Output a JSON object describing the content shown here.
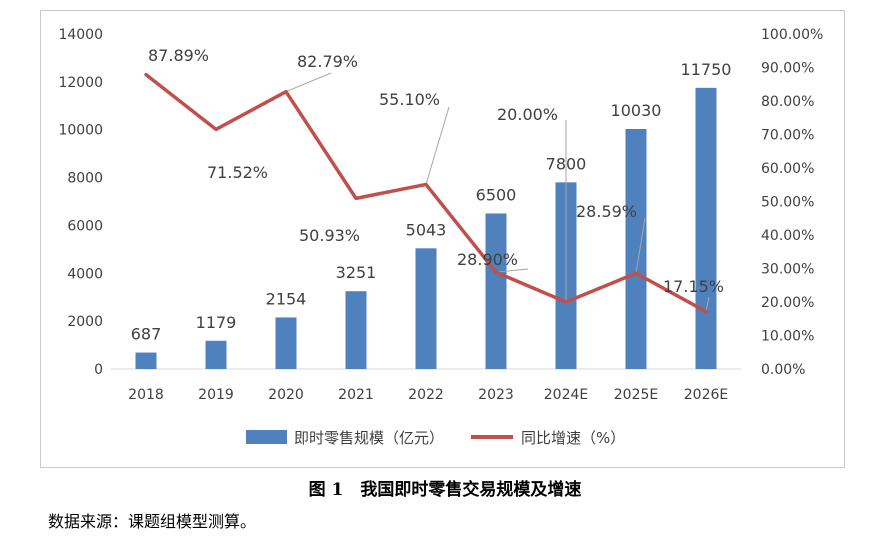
{
  "chart_data": {
    "type": "bar+line",
    "categories": [
      "2018",
      "2019",
      "2020",
      "2021",
      "2022",
      "2023",
      "2024E",
      "2025E",
      "2026E"
    ],
    "series": [
      {
        "name": "即时零售规模（亿元）",
        "type": "bar",
        "axis": "left",
        "color": "#4f81bd",
        "values": [
          687,
          1179,
          2154,
          3251,
          5043,
          6500,
          7800,
          10030,
          11750
        ],
        "labels": [
          "687",
          "1179",
          "2154",
          "3251",
          "5043",
          "6500",
          "7800",
          "10030",
          "11750"
        ]
      },
      {
        "name": "同比增速（%）",
        "type": "line",
        "axis": "right",
        "color": "#c0504d",
        "values": [
          87.89,
          71.52,
          82.79,
          50.93,
          55.1,
          28.9,
          20.0,
          28.59,
          17.15
        ],
        "labels": [
          "87.89%",
          "71.52%",
          "82.79%",
          "50.93%",
          "55.10%",
          "28.90%",
          "20.00%",
          "28.59%",
          "17.15%"
        ]
      }
    ],
    "y_left": {
      "min": 0,
      "max": 14000,
      "ticks": [
        0,
        2000,
        4000,
        6000,
        8000,
        10000,
        12000,
        14000
      ],
      "tick_labels": [
        "0",
        "2000",
        "4000",
        "6000",
        "8000",
        "10000",
        "12000",
        "14000"
      ]
    },
    "y_right": {
      "min": 0,
      "max": 100,
      "ticks": [
        0,
        10,
        20,
        30,
        40,
        50,
        60,
        70,
        80,
        90,
        100
      ],
      "tick_labels": [
        "0.00%",
        "10.00%",
        "20.00%",
        "30.00%",
        "40.00%",
        "50.00%",
        "60.00%",
        "70.00%",
        "80.00%",
        "90.00%",
        "100.00%"
      ]
    },
    "grid": false,
    "legend_position": "bottom"
  },
  "caption": "图 1　我国即时零售交易规模及增速",
  "source": "数据来源：课题组模型测算。"
}
